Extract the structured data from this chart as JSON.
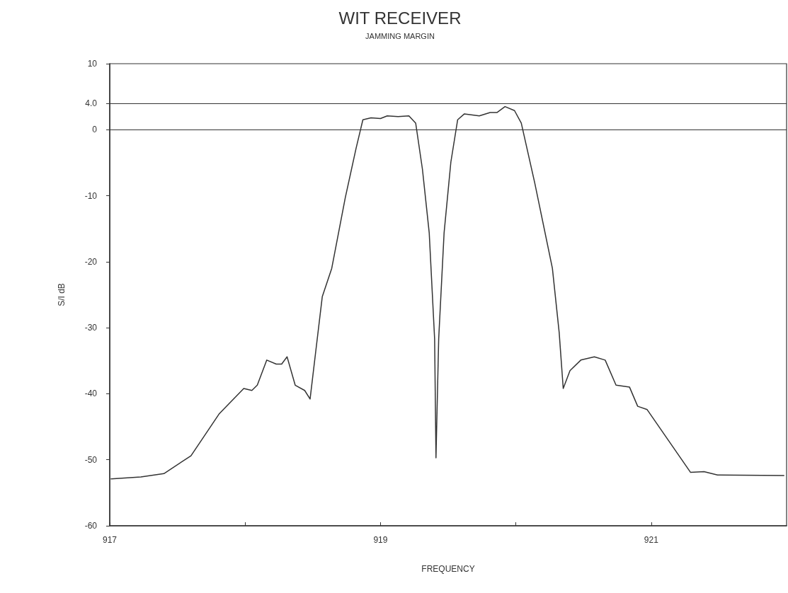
{
  "chart_data": {
    "type": "line",
    "title": "WIT RECEIVER",
    "subtitle": "JAMMING MARGIN",
    "xlabel": "FREQUENCY",
    "ylabel": "S/I dB",
    "xlim": [
      917,
      922
    ],
    "xticks": [
      917,
      {
        "value": 918,
        "label": null
      },
      919,
      {
        "value": 920,
        "label": null
      },
      921
    ],
    "ylim": [
      -60,
      10
    ],
    "yticks": [
      -60,
      -50,
      -40,
      -30,
      -20,
      -10,
      0,
      {
        "value": 4,
        "label": "4.0"
      },
      10
    ],
    "grid": false,
    "marker": "none",
    "line_style": "solid",
    "ref_lines": [
      {
        "axis": "y",
        "value": 4,
        "color": "#333333"
      },
      {
        "axis": "y",
        "value": 0,
        "color": "#333333"
      }
    ],
    "series": [
      {
        "color": "#333333",
        "x": [
          917.01,
          917.23,
          917.4,
          917.6,
          917.81,
          917.99,
          918.05,
          918.09,
          918.16,
          918.23,
          918.27,
          918.31,
          918.37,
          918.44,
          918.48,
          918.52,
          918.57,
          918.64,
          918.74,
          918.82,
          918.87,
          918.93,
          919.0,
          919.05,
          919.13,
          919.21,
          919.26,
          919.31,
          919.36,
          919.4,
          919.41,
          919.43,
          919.47,
          919.52,
          919.57,
          919.62,
          919.73,
          919.81,
          919.86,
          919.92,
          919.99,
          920.04,
          920.14,
          920.27,
          920.32,
          920.35,
          920.4,
          920.48,
          920.58,
          920.66,
          920.74,
          920.84,
          920.9,
          920.97,
          921.29,
          921.39,
          921.49,
          921.98
        ],
        "values": [
          -52.9,
          -52.6,
          -52.1,
          -49.4,
          -43.0,
          -39.2,
          -39.5,
          -38.7,
          -34.9,
          -35.5,
          -35.5,
          -34.4,
          -38.7,
          -39.5,
          -40.8,
          -33.9,
          -25.3,
          -21.0,
          -10.3,
          -2.8,
          1.5,
          1.8,
          1.7,
          2.1,
          2.0,
          2.1,
          1.0,
          -6.0,
          -15.6,
          -31.7,
          -49.7,
          -31.7,
          -15.6,
          -4.9,
          1.5,
          2.4,
          2.1,
          2.6,
          2.6,
          3.5,
          2.9,
          1.0,
          -8.1,
          -21.0,
          -30.7,
          -39.2,
          -36.5,
          -34.9,
          -34.4,
          -34.9,
          -38.7,
          -39.0,
          -41.9,
          -42.4,
          -51.9,
          -51.8,
          -52.3,
          -52.4
        ]
      }
    ]
  }
}
